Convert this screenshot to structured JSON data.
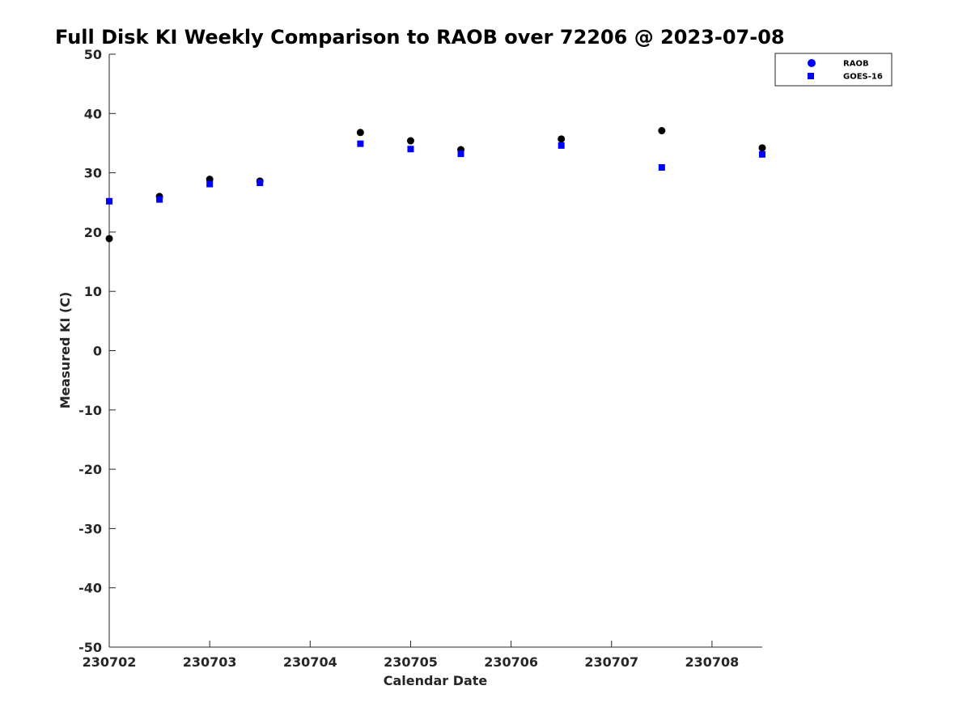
{
  "chart_data": {
    "type": "scatter",
    "title": "Full Disk KI Weekly Comparison to RAOB over 72206 @ 2023-07-08",
    "xlabel": "Calendar Date",
    "ylabel": "Measured KI (C)",
    "xlim": [
      0,
      6.5
    ],
    "ylim": [
      -50,
      50
    ],
    "x_ticks": [
      {
        "value": 0,
        "label": "230702"
      },
      {
        "value": 1,
        "label": "230703"
      },
      {
        "value": 2,
        "label": "230704"
      },
      {
        "value": 3,
        "label": "230705"
      },
      {
        "value": 4,
        "label": "230706"
      },
      {
        "value": 5,
        "label": "230707"
      },
      {
        "value": 6,
        "label": "230708"
      }
    ],
    "y_ticks": [
      50,
      40,
      30,
      20,
      10,
      0,
      -10,
      -20,
      -30,
      -40,
      -50
    ],
    "grid": false,
    "legend_position": "top-right",
    "series": [
      {
        "name": "RAOB",
        "marker": "circle",
        "color": "#000000",
        "legend_color": "#0000ff",
        "points": [
          {
            "x": 0.0,
            "y": 18.9
          },
          {
            "x": 0.5,
            "y": 26.0
          },
          {
            "x": 1.0,
            "y": 28.9
          },
          {
            "x": 1.5,
            "y": 28.6
          },
          {
            "x": 2.5,
            "y": 36.8
          },
          {
            "x": 3.0,
            "y": 35.4
          },
          {
            "x": 3.5,
            "y": 33.9
          },
          {
            "x": 4.5,
            "y": 35.7
          },
          {
            "x": 5.5,
            "y": 37.1
          },
          {
            "x": 6.5,
            "y": 34.2
          }
        ]
      },
      {
        "name": "GOES-16",
        "marker": "square",
        "color": "#0000ff",
        "legend_color": "#0000ff",
        "points": [
          {
            "x": 0.0,
            "y": 25.2
          },
          {
            "x": 0.5,
            "y": 25.5
          },
          {
            "x": 1.0,
            "y": 28.1
          },
          {
            "x": 1.5,
            "y": 28.3
          },
          {
            "x": 2.5,
            "y": 34.9
          },
          {
            "x": 3.0,
            "y": 34.0
          },
          {
            "x": 3.5,
            "y": 33.2
          },
          {
            "x": 4.5,
            "y": 34.6
          },
          {
            "x": 5.5,
            "y": 30.9
          },
          {
            "x": 6.5,
            "y": 33.1
          }
        ]
      }
    ]
  }
}
